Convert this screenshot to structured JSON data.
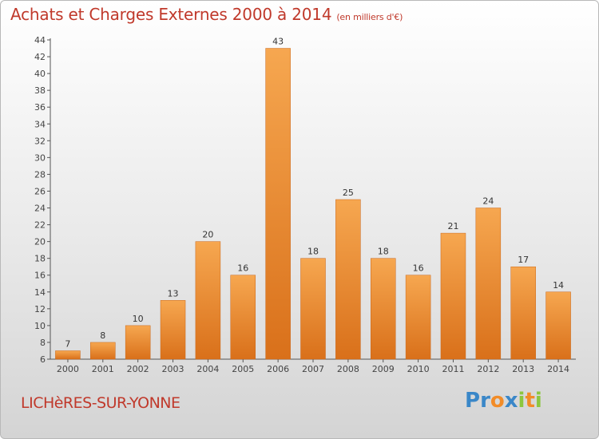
{
  "header": {
    "title": "Achats et Charges Externes 2000 à 2014",
    "subtitle": "(en milliers d'€)"
  },
  "footer": {
    "commune": "LICHèRES-SUR-YONNE",
    "logo": {
      "text": "Proxiti",
      "letters": [
        {
          "char": "P",
          "color": "#3a87c8"
        },
        {
          "char": "r",
          "color": "#3a87c8"
        },
        {
          "char": "o",
          "color": "#f28c28"
        },
        {
          "char": "x",
          "color": "#3a87c8"
        },
        {
          "char": "i",
          "color": "#8cc63f"
        },
        {
          "char": "t",
          "color": "#f28c28"
        },
        {
          "char": "i",
          "color": "#8cc63f"
        }
      ]
    }
  },
  "colors": {
    "bar_light": "#f6a750",
    "bar_dark": "#d9701a",
    "title": "#c0392b"
  },
  "chart_data": {
    "type": "bar",
    "title": "Achats et Charges Externes 2000 à 2014",
    "subtitle": "(en milliers d'€)",
    "xlabel": "",
    "ylabel": "",
    "categories": [
      "2000",
      "2001",
      "2002",
      "2003",
      "2004",
      "2005",
      "2006",
      "2007",
      "2008",
      "2009",
      "2010",
      "2011",
      "2012",
      "2013",
      "2014"
    ],
    "values": [
      7,
      8,
      10,
      13,
      20,
      16,
      43,
      18,
      25,
      18,
      16,
      21,
      24,
      17,
      14
    ],
    "value_labels": [
      "7",
      "8",
      "10",
      "13",
      "20",
      "16",
      "43",
      "18",
      "25",
      "18",
      "16",
      "21",
      "24",
      "17",
      "14"
    ],
    "ylim": [
      6,
      44
    ],
    "yticks": [
      6,
      8,
      10,
      12,
      14,
      16,
      18,
      20,
      22,
      24,
      26,
      28,
      30,
      32,
      34,
      36,
      38,
      40,
      42,
      44
    ],
    "grid": false,
    "legend": "none"
  }
}
